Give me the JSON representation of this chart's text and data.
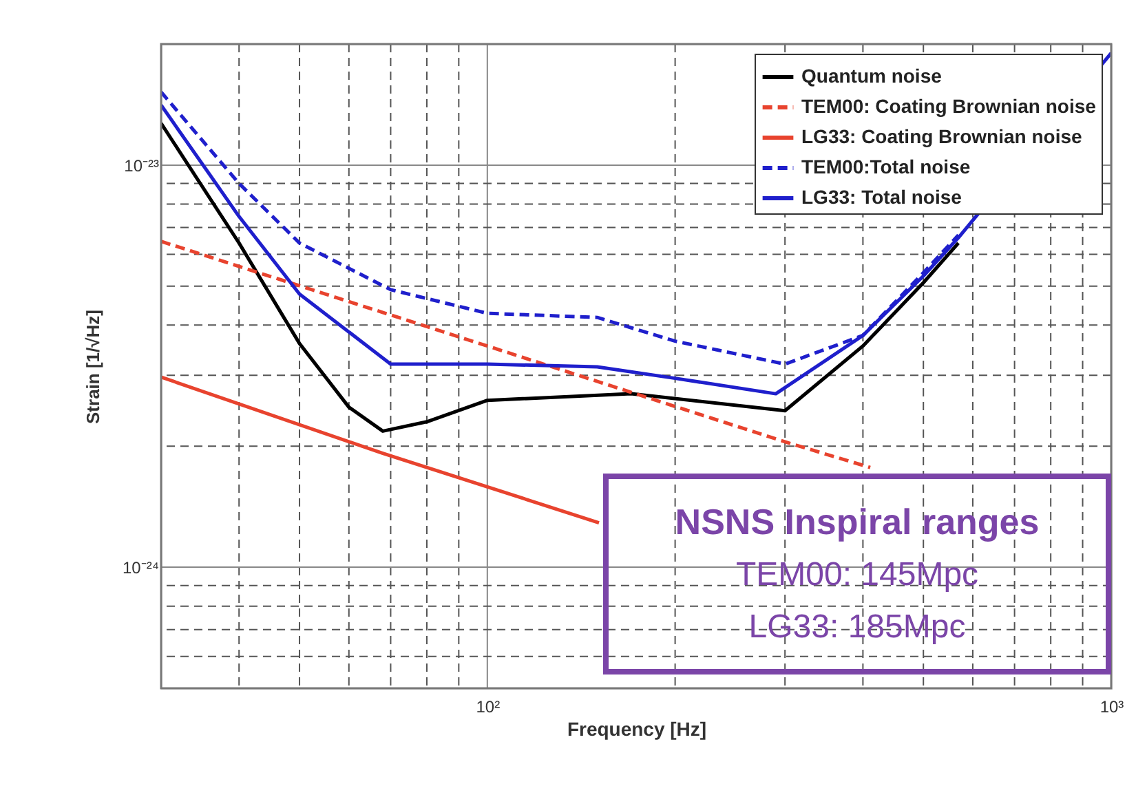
{
  "chart_data": {
    "type": "line",
    "xlabel": "Frequency [Hz]",
    "ylabel": "Strain [1/√Hz]",
    "log": "xy",
    "grid": true,
    "legend": "top right",
    "xlim": [
      30,
      1000
    ],
    "ylim": [
      5e-25,
      2e-23
    ],
    "xticks": [
      {
        "value": 40,
        "label": null
      },
      {
        "value": 50,
        "label": null
      },
      {
        "value": 60,
        "label": null
      },
      {
        "value": 70,
        "label": null
      },
      {
        "value": 80,
        "label": null
      },
      {
        "value": 90,
        "label": null
      },
      {
        "value": 100,
        "label": "10²"
      },
      {
        "value": 200,
        "label": null
      },
      {
        "value": 300,
        "label": null
      },
      {
        "value": 400,
        "label": null
      },
      {
        "value": 500,
        "label": null
      },
      {
        "value": 600,
        "label": null
      },
      {
        "value": 700,
        "label": null
      },
      {
        "value": 800,
        "label": null
      },
      {
        "value": 900,
        "label": null
      },
      {
        "value": 1000,
        "label": "10³"
      }
    ],
    "yticks": [
      {
        "value": 6e-25,
        "label": null
      },
      {
        "value": 7e-25,
        "label": null
      },
      {
        "value": 8e-25,
        "label": null
      },
      {
        "value": 9e-25,
        "label": null
      },
      {
        "value": 1e-24,
        "label": "10⁻²⁴"
      },
      {
        "value": 2e-24,
        "label": null
      },
      {
        "value": 3e-24,
        "label": null
      },
      {
        "value": 4e-24,
        "label": null
      },
      {
        "value": 5e-24,
        "label": null
      },
      {
        "value": 6e-24,
        "label": null
      },
      {
        "value": 7e-24,
        "label": null
      },
      {
        "value": 8e-24,
        "label": null
      },
      {
        "value": 9e-24,
        "label": null
      },
      {
        "value": 1e-23,
        "label": "10⁻²³"
      },
      {
        "value": 2e-23,
        "label": null
      }
    ],
    "series": [
      {
        "name": "Quantum noise",
        "color": "#000000",
        "line_style": "solid",
        "x": [
          30,
          40,
          50,
          60,
          68,
          80,
          100,
          170,
          300,
          400,
          500,
          569
        ],
        "values": [
          1.27e-23,
          6.4e-24,
          3.6e-24,
          2.5e-24,
          2.18e-24,
          2.3e-24,
          2.6e-24,
          2.7e-24,
          2.45e-24,
          3.55e-24,
          5.1e-24,
          6.4e-24
        ]
      },
      {
        "name": "TEM00: Coating Brownian noise",
        "color": "#e8432e",
        "line_style": "dashed",
        "x": [
          30,
          100,
          300,
          411
        ],
        "values": [
          6.46e-24,
          3.55e-24,
          2.05e-24,
          1.77e-24
        ]
      },
      {
        "name": "LG33: Coating Brownian noise",
        "color": "#e8432e",
        "line_style": "solid",
        "x": [
          30,
          68,
          151
        ],
        "values": [
          2.97e-24,
          1.92e-24,
          1.29e-24
        ]
      },
      {
        "name": "TEM00:Total noise",
        "color": "#1f1fcc",
        "line_style": "dashed",
        "x": [
          30,
          40,
          50,
          70,
          100,
          150,
          200,
          300,
          400,
          500,
          569
        ],
        "values": [
          1.52e-23,
          9e-24,
          6.4e-24,
          4.9e-24,
          4.28e-24,
          4.18e-24,
          3.65e-24,
          3.2e-24,
          3.77e-24,
          5.4e-24,
          6.7e-24
        ]
      },
      {
        "name": "LG33: Total noise",
        "color": "#1f1fcc",
        "line_style": "solid",
        "x": [
          30,
          40,
          50,
          70,
          100,
          150,
          200,
          290,
          400,
          500,
          569,
          1000
        ],
        "values": [
          1.41e-23,
          7.45e-24,
          4.78e-24,
          3.2e-24,
          3.2e-24,
          3.15e-24,
          2.95e-24,
          2.7e-24,
          3.77e-24,
          5.3e-24,
          6.6e-24,
          1.9e-23
        ]
      }
    ],
    "annotations": [
      "NSNS Inspiral ranges",
      "TEM00: 145Mpc",
      "LG33: 185Mpc"
    ]
  }
}
